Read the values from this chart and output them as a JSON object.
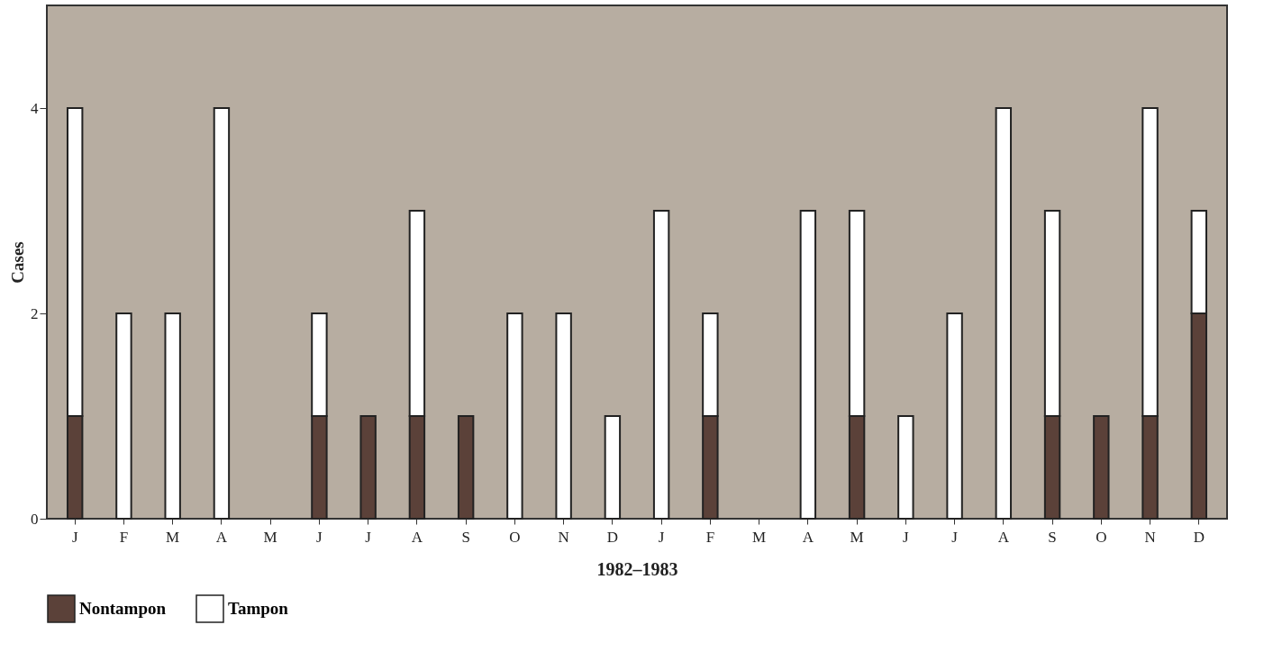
{
  "chart_data": {
    "type": "bar",
    "stacked": true,
    "xlabel": "1982–1983",
    "ylabel": "Cases",
    "categories": [
      "J",
      "F",
      "M",
      "A",
      "M",
      "J",
      "J",
      "A",
      "S",
      "O",
      "N",
      "D",
      "J",
      "F",
      "M",
      "A",
      "M",
      "J",
      "J",
      "A",
      "S",
      "O",
      "N",
      "D"
    ],
    "series": [
      {
        "name": "Nontampon",
        "color": "#5b4139",
        "values": [
          1,
          0,
          0,
          0,
          0,
          1,
          1,
          1,
          1,
          0,
          0,
          0,
          0,
          1,
          0,
          0,
          1,
          0,
          0,
          0,
          1,
          1,
          1,
          2
        ]
      },
      {
        "name": "Tampon",
        "color": "#ffffff",
        "values": [
          3,
          2,
          2,
          4,
          0,
          1,
          0,
          2,
          0,
          2,
          2,
          1,
          3,
          1,
          0,
          3,
          2,
          1,
          2,
          4,
          2,
          0,
          3,
          1
        ]
      }
    ],
    "ylim": [
      0,
      5
    ],
    "yticks": [
      0,
      2,
      4
    ],
    "grid": false,
    "legend": "bottom left"
  }
}
